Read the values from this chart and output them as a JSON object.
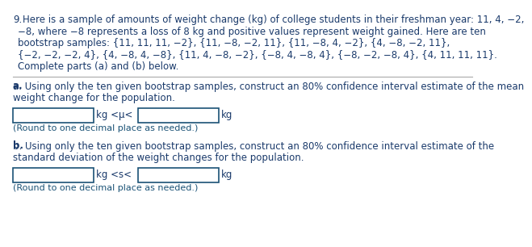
{
  "number": "9.",
  "line1": "Here is a sample of amounts of weight change (kg) of college students in their freshman year: 11, 4, −2,",
  "line2": "−8, where −8 represents a loss of 8 kg and positive values represent weight gained. Here are ten",
  "line3": "bootstrap samples: {11, 11, 11, −2}, {11, −8, −2, 11}, {11, −8, 4, −2}, {4, −8, −2, 11},",
  "line4": "{−2, −2, −2, 4}, {4, −8, 4, −8}, {11, 4, −8, −2}, {−8, 4, −8, 4}, {−8, −2, −8, 4}, {4, 11, 11, 11}.",
  "line5": "Complete parts (a) and (b) below.",
  "part_a_line1": "a. Using only the ten given bootstrap samples, construct an 80% confidence interval estimate of the mean",
  "part_a_line2": "weight change for the population.",
  "part_a_sym": "kg <μ<",
  "part_a_kg": "kg",
  "part_a_round": "(Round to one decimal place as needed.)",
  "part_b_line1": "b. Using only the ten given bootstrap samples, construct an 80% confidence interval estimate of the",
  "part_b_line2": "standard deviation of the weight changes for the population.",
  "part_b_sym": "kg <s<",
  "part_b_kg": "kg",
  "part_b_round": "(Round to one decimal place as needed.)",
  "text_color": "#1a3a6b",
  "box_edge_color": "#1a5276",
  "round_color": "#1a5276",
  "sep_color": "#aaaaaa",
  "bg_color": "#ffffff",
  "fs_main": 8.5,
  "fs_round": 8.0
}
